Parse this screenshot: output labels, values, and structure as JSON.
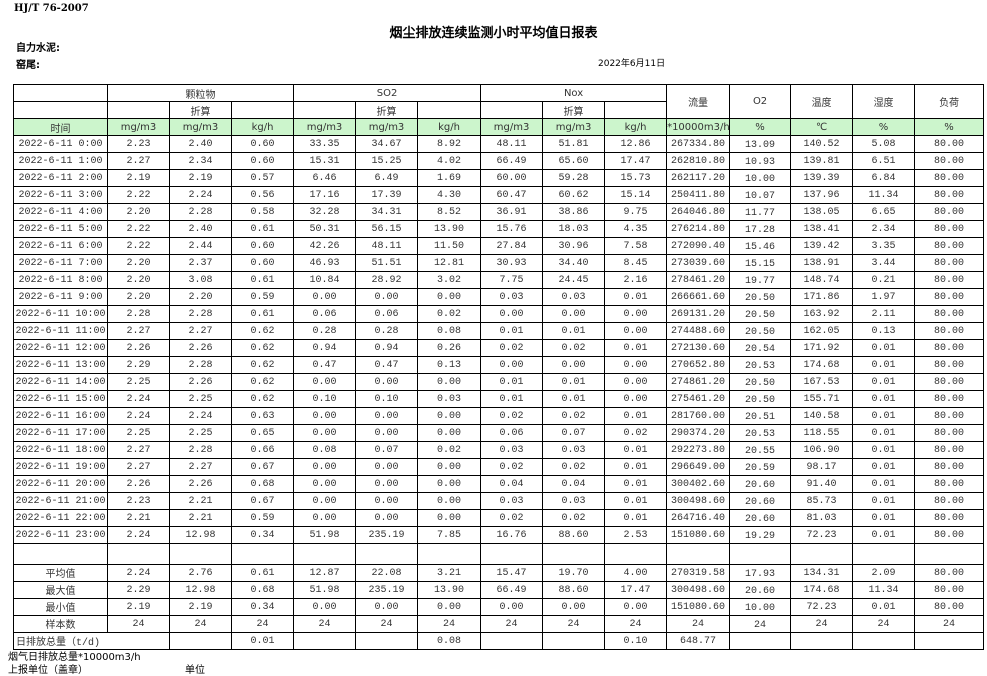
{
  "standard": "HJ/T  76-2007",
  "title": "烟尘排放连续监测小时平均值日报表",
  "company": "自力水泥:",
  "kiln": "窑尾:",
  "date": "2022年6月11日",
  "header": {
    "pm": "颗粒物",
    "so2": "SO2",
    "nox": "Nox",
    "converted": "折算",
    "flow": "流量",
    "o2": "O2",
    "temp": "温度",
    "humidity": "湿度",
    "load": "负荷",
    "units": [
      "时间",
      "mg/m3",
      "mg/m3",
      "kg/h",
      "mg/m3",
      "mg/m3",
      "kg/h",
      "mg/m3",
      "mg/m3",
      "kg/h",
      "*10000m3/h",
      "%",
      "℃",
      "%",
      "%"
    ]
  },
  "colors": {
    "unit_row_bg": "#ccf5cc"
  },
  "rows": [
    [
      "2022-6-11 0:00",
      "2.23",
      "2.40",
      "0.60",
      "33.35",
      "34.67",
      "8.92",
      "48.11",
      "51.81",
      "12.86",
      "267334.80",
      "13.09",
      "140.52",
      "5.08",
      "80.00"
    ],
    [
      "2022-6-11 1:00",
      "2.27",
      "2.34",
      "0.60",
      "15.31",
      "15.25",
      "4.02",
      "66.49",
      "65.60",
      "17.47",
      "262810.80",
      "10.93",
      "139.81",
      "6.51",
      "80.00"
    ],
    [
      "2022-6-11 2:00",
      "2.19",
      "2.19",
      "0.57",
      "6.46",
      "6.49",
      "1.69",
      "60.00",
      "59.28",
      "15.73",
      "262117.20",
      "10.00",
      "139.39",
      "6.84",
      "80.00"
    ],
    [
      "2022-6-11 3:00",
      "2.22",
      "2.24",
      "0.56",
      "17.16",
      "17.39",
      "4.30",
      "60.47",
      "60.62",
      "15.14",
      "250411.80",
      "10.07",
      "137.96",
      "11.34",
      "80.00"
    ],
    [
      "2022-6-11 4:00",
      "2.20",
      "2.28",
      "0.58",
      "32.28",
      "34.31",
      "8.52",
      "36.91",
      "38.86",
      "9.75",
      "264046.80",
      "11.77",
      "138.05",
      "6.65",
      "80.00"
    ],
    [
      "2022-6-11 5:00",
      "2.22",
      "2.40",
      "0.61",
      "50.31",
      "56.15",
      "13.90",
      "15.76",
      "18.03",
      "4.35",
      "276214.80",
      "17.28",
      "138.41",
      "2.34",
      "80.00"
    ],
    [
      "2022-6-11 6:00",
      "2.22",
      "2.44",
      "0.60",
      "42.26",
      "48.11",
      "11.50",
      "27.84",
      "30.96",
      "7.58",
      "272090.40",
      "15.46",
      "139.42",
      "3.35",
      "80.00"
    ],
    [
      "2022-6-11 7:00",
      "2.20",
      "2.37",
      "0.60",
      "46.93",
      "51.51",
      "12.81",
      "30.93",
      "34.40",
      "8.45",
      "273039.60",
      "15.15",
      "138.91",
      "3.44",
      "80.00"
    ],
    [
      "2022-6-11 8:00",
      "2.20",
      "3.08",
      "0.61",
      "10.84",
      "28.92",
      "3.02",
      "7.75",
      "24.45",
      "2.16",
      "278461.20",
      "19.77",
      "148.74",
      "0.21",
      "80.00"
    ],
    [
      "2022-6-11 9:00",
      "2.20",
      "2.20",
      "0.59",
      "0.00",
      "0.00",
      "0.00",
      "0.03",
      "0.03",
      "0.01",
      "266661.60",
      "20.50",
      "171.86",
      "1.97",
      "80.00"
    ],
    [
      "2022-6-11 10:00",
      "2.28",
      "2.28",
      "0.61",
      "0.06",
      "0.06",
      "0.02",
      "0.00",
      "0.00",
      "0.00",
      "269131.20",
      "20.50",
      "163.92",
      "2.11",
      "80.00"
    ],
    [
      "2022-6-11 11:00",
      "2.27",
      "2.27",
      "0.62",
      "0.28",
      "0.28",
      "0.08",
      "0.01",
      "0.01",
      "0.00",
      "274488.60",
      "20.50",
      "162.05",
      "0.13",
      "80.00"
    ],
    [
      "2022-6-11 12:00",
      "2.26",
      "2.26",
      "0.62",
      "0.94",
      "0.94",
      "0.26",
      "0.02",
      "0.02",
      "0.01",
      "272130.60",
      "20.54",
      "171.92",
      "0.01",
      "80.00"
    ],
    [
      "2022-6-11 13:00",
      "2.29",
      "2.28",
      "0.62",
      "0.47",
      "0.47",
      "0.13",
      "0.00",
      "0.00",
      "0.00",
      "270652.80",
      "20.53",
      "174.68",
      "0.01",
      "80.00"
    ],
    [
      "2022-6-11 14:00",
      "2.25",
      "2.26",
      "0.62",
      "0.00",
      "0.00",
      "0.00",
      "0.01",
      "0.01",
      "0.00",
      "274861.20",
      "20.50",
      "167.53",
      "0.01",
      "80.00"
    ],
    [
      "2022-6-11 15:00",
      "2.24",
      "2.25",
      "0.62",
      "0.10",
      "0.10",
      "0.03",
      "0.01",
      "0.01",
      "0.00",
      "275461.20",
      "20.50",
      "155.71",
      "0.01",
      "80.00"
    ],
    [
      "2022-6-11 16:00",
      "2.24",
      "2.24",
      "0.63",
      "0.00",
      "0.00",
      "0.00",
      "0.02",
      "0.02",
      "0.01",
      "281760.00",
      "20.51",
      "140.58",
      "0.01",
      "80.00"
    ],
    [
      "2022-6-11 17:00",
      "2.25",
      "2.25",
      "0.65",
      "0.00",
      "0.00",
      "0.00",
      "0.06",
      "0.07",
      "0.02",
      "290374.20",
      "20.53",
      "118.55",
      "0.01",
      "80.00"
    ],
    [
      "2022-6-11 18:00",
      "2.27",
      "2.28",
      "0.66",
      "0.08",
      "0.07",
      "0.02",
      "0.03",
      "0.03",
      "0.01",
      "292273.80",
      "20.55",
      "106.90",
      "0.01",
      "80.00"
    ],
    [
      "2022-6-11 19:00",
      "2.27",
      "2.27",
      "0.67",
      "0.00",
      "0.00",
      "0.00",
      "0.02",
      "0.02",
      "0.01",
      "296649.00",
      "20.59",
      "98.17",
      "0.01",
      "80.00"
    ],
    [
      "2022-6-11 20:00",
      "2.26",
      "2.26",
      "0.68",
      "0.00",
      "0.00",
      "0.00",
      "0.04",
      "0.04",
      "0.01",
      "300402.60",
      "20.60",
      "91.40",
      "0.01",
      "80.00"
    ],
    [
      "2022-6-11 21:00",
      "2.23",
      "2.21",
      "0.67",
      "0.00",
      "0.00",
      "0.00",
      "0.03",
      "0.03",
      "0.01",
      "300498.60",
      "20.60",
      "85.73",
      "0.01",
      "80.00"
    ],
    [
      "2022-6-11 22:00",
      "2.21",
      "2.21",
      "0.59",
      "0.00",
      "0.00",
      "0.00",
      "0.02",
      "0.02",
      "0.01",
      "264716.40",
      "20.60",
      "81.03",
      "0.01",
      "80.00"
    ],
    [
      "2022-6-11 23:00",
      "2.24",
      "12.98",
      "0.34",
      "51.98",
      "235.19",
      "7.85",
      "16.76",
      "88.60",
      "2.53",
      "151080.60",
      "19.29",
      "72.23",
      "0.01",
      "80.00"
    ]
  ],
  "summary": [
    [
      "平均值",
      "2.24",
      "2.76",
      "0.61",
      "12.87",
      "22.08",
      "3.21",
      "15.47",
      "19.70",
      "4.00",
      "270319.58",
      "17.93",
      "134.31",
      "2.09",
      "80.00"
    ],
    [
      "最大值",
      "2.29",
      "12.98",
      "0.68",
      "51.98",
      "235.19",
      "13.90",
      "66.49",
      "88.60",
      "17.47",
      "300498.60",
      "20.60",
      "174.68",
      "11.34",
      "80.00"
    ],
    [
      "最小值",
      "2.19",
      "2.19",
      "0.34",
      "0.00",
      "0.00",
      "0.00",
      "0.00",
      "0.00",
      "0.00",
      "151080.60",
      "10.00",
      "72.23",
      "0.01",
      "80.00"
    ],
    [
      "样本数",
      "24",
      "24",
      "24",
      "24",
      "24",
      "24",
      "24",
      "24",
      "24",
      "24",
      "24",
      "24",
      "24",
      "24"
    ]
  ],
  "daily_total": {
    "label": "日排放总量（t/d)",
    "values": [
      "",
      "0.01",
      "",
      "",
      "0.08",
      "",
      "",
      "0.10",
      "648.77",
      "",
      "",
      "",
      ""
    ]
  },
  "footer": {
    "flue_total": "烟气日排放总量*10000m3/h",
    "reporter": "上报单位（盖章）",
    "unit": "单位"
  }
}
